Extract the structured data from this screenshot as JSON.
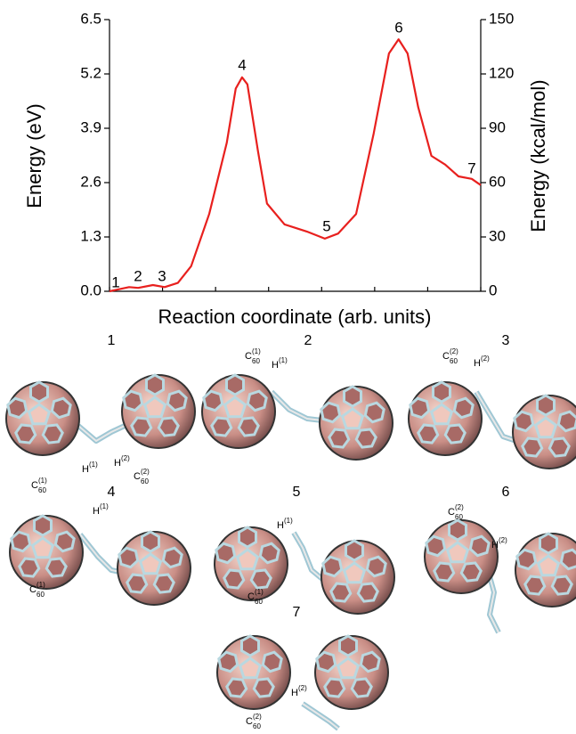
{
  "chart_data": {
    "type": "line",
    "xlabel": "Reaction coordinate (arb. units)",
    "ylabel": "Energy (eV)",
    "y2label": "Energy (kcal/mol)",
    "x": [
      0,
      0.37,
      0.54,
      0.82,
      1.04,
      1.29,
      1.54,
      1.88,
      2.21,
      2.38,
      2.5,
      2.6,
      2.8,
      2.97,
      3.3,
      3.72,
      4.06,
      4.31,
      4.65,
      4.98,
      5.27,
      5.45,
      5.62,
      5.82,
      6.07,
      6.33,
      6.58,
      6.83,
      7.0
    ],
    "series": [
      {
        "color": "#e8201e",
        "values": [
          0,
          0.1,
          0.08,
          0.15,
          0.1,
          0.2,
          0.6,
          1.85,
          3.55,
          4.85,
          5.12,
          4.95,
          3.35,
          2.1,
          1.6,
          1.43,
          1.26,
          1.38,
          1.85,
          3.77,
          5.69,
          6.03,
          5.69,
          4.41,
          3.24,
          3.03,
          2.75,
          2.69,
          2.54
        ]
      }
    ],
    "xlim": [
      0,
      7
    ],
    "xticks": [
      0,
      1,
      2,
      3,
      4,
      5,
      6,
      7
    ],
    "ylim": [
      0,
      6.5
    ],
    "yticks": [
      {
        "value": 0,
        "label": "0.0"
      },
      {
        "value": 1.3,
        "label": "1.3"
      },
      {
        "value": 2.6,
        "label": "2.6"
      },
      {
        "value": 3.9,
        "label": "3.9"
      },
      {
        "value": 5.2,
        "label": "5.2"
      },
      {
        "value": 6.5,
        "label": "6.5"
      }
    ],
    "y2lim": [
      0,
      150
    ],
    "y2ticks": [
      0,
      30,
      60,
      90,
      120,
      150
    ],
    "annotations": [
      "1",
      "2",
      "3",
      "4",
      "5",
      "6",
      "7"
    ]
  },
  "structures": [
    {
      "label": "1",
      "atoms": [
        {
          "el": "C",
          "sub": "60",
          "sup": "(1)"
        },
        {
          "el": "H",
          "sup": "(1)"
        },
        {
          "el": "H",
          "sup": "(2)"
        },
        {
          "el": "C",
          "sub": "60",
          "sup": "(2)"
        }
      ]
    },
    {
      "label": "2",
      "atoms": [
        {
          "el": "C",
          "sub": "60",
          "sup": "(1)"
        },
        {
          "el": "H",
          "sup": "(1)"
        }
      ]
    },
    {
      "label": "3",
      "atoms": [
        {
          "el": "C",
          "sub": "60",
          "sup": "(2)"
        },
        {
          "el": "H",
          "sup": "(2)"
        }
      ]
    },
    {
      "label": "4",
      "atoms": [
        {
          "el": "H",
          "sup": "(1)"
        },
        {
          "el": "C",
          "sub": "60",
          "sup": "(1)"
        }
      ]
    },
    {
      "label": "5",
      "atoms": [
        {
          "el": "H",
          "sup": "(1)"
        },
        {
          "el": "C",
          "sub": "60",
          "sup": "(1)"
        }
      ]
    },
    {
      "label": "6",
      "atoms": [
        {
          "el": "C",
          "sub": "60",
          "sup": "(2)"
        },
        {
          "el": "H",
          "sup": "(2)"
        }
      ]
    },
    {
      "label": "7",
      "atoms": [
        {
          "el": "C",
          "sub": "60",
          "sup": "(2)"
        },
        {
          "el": "H",
          "sup": "(2)"
        }
      ]
    }
  ]
}
